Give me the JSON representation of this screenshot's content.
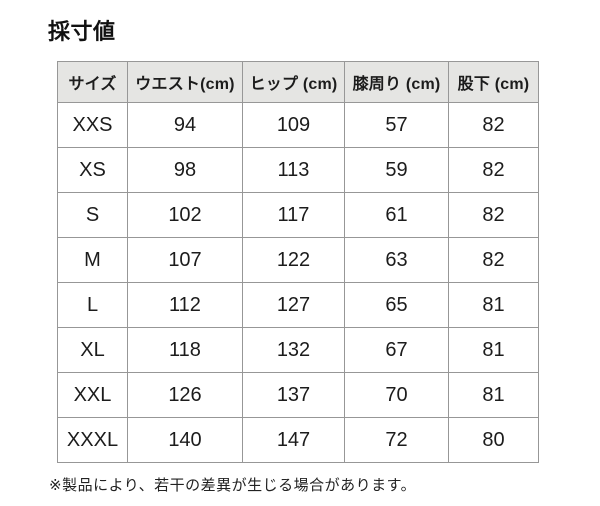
{
  "page_title": "採寸値",
  "table": {
    "columns": [
      "サイズ",
      "ウエスト(cm)",
      "ヒップ (cm)",
      "膝周り (cm)",
      "股下 (cm)"
    ],
    "rows": [
      [
        "XXS",
        "94",
        "109",
        "57",
        "82"
      ],
      [
        "XS",
        "98",
        "113",
        "59",
        "82"
      ],
      [
        "S",
        "102",
        "117",
        "61",
        "82"
      ],
      [
        "M",
        "107",
        "122",
        "63",
        "82"
      ],
      [
        "L",
        "112",
        "127",
        "65",
        "81"
      ],
      [
        "XL",
        "118",
        "132",
        "67",
        "81"
      ],
      [
        "XXL",
        "126",
        "137",
        "70",
        "81"
      ],
      [
        "XXXL",
        "140",
        "147",
        "72",
        "80"
      ]
    ]
  },
  "footnote": "※製品により、若干の差異が生じる場合があります。",
  "colors": {
    "background": "#ffffff",
    "header_bg": "#e5e5e3",
    "border": "#979797",
    "text": "#1c1c1c"
  }
}
